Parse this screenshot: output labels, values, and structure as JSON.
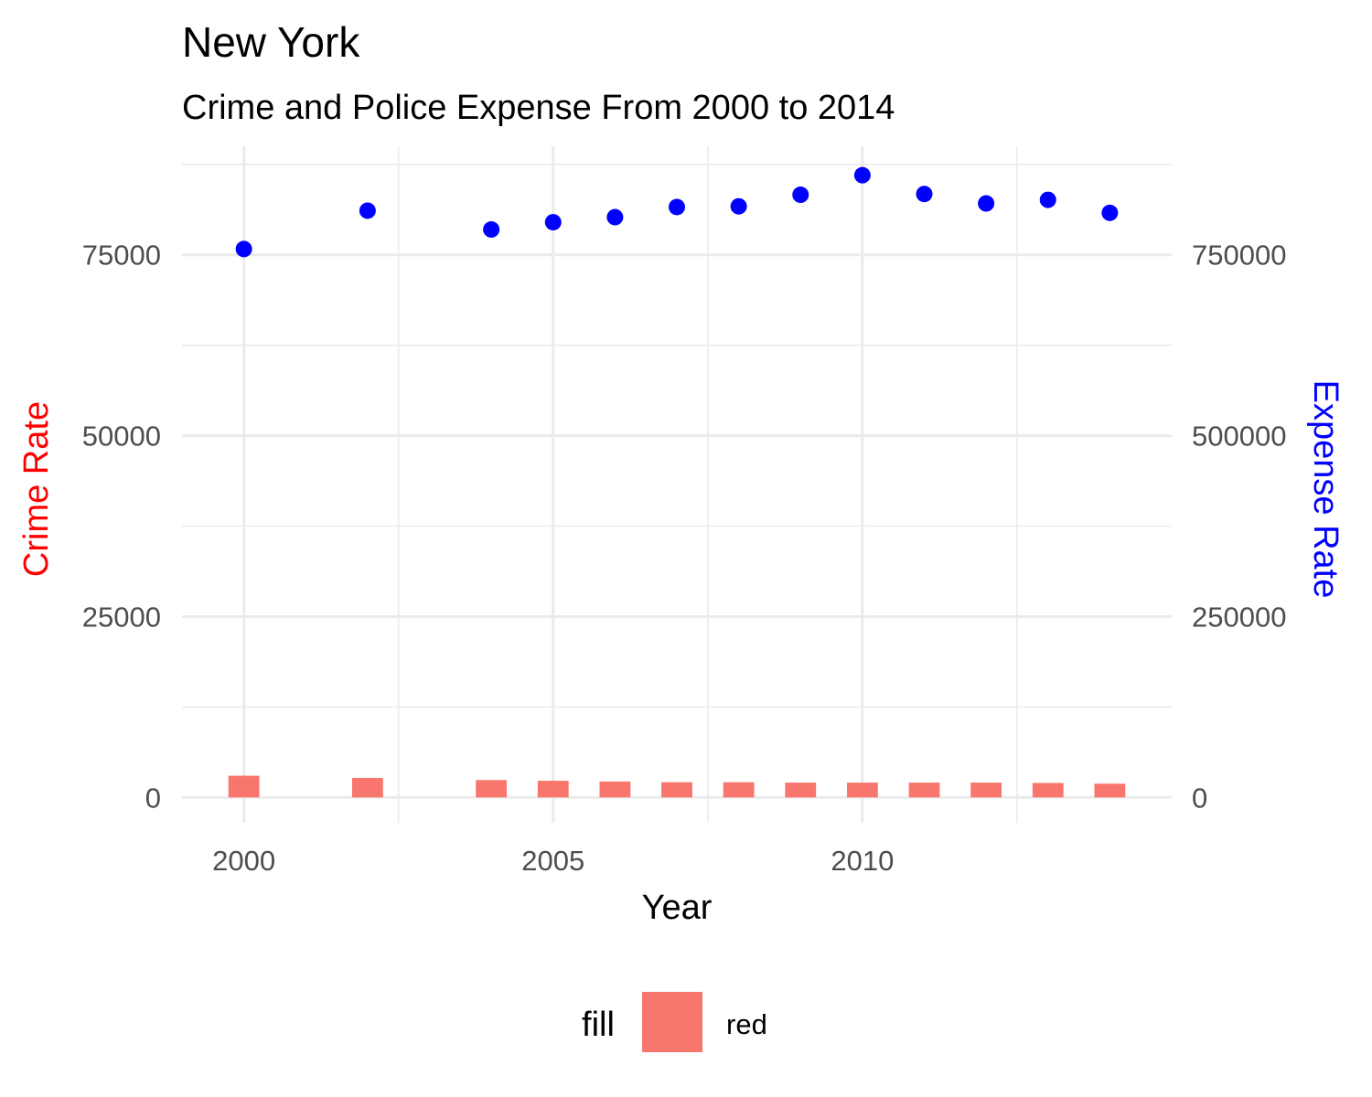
{
  "chart_data": {
    "type": "bar",
    "title": "New York",
    "subtitle": "Crime and Police Expense From 2000 to 2014",
    "xlabel": "Year",
    "ylabel": "Crime Rate",
    "y2label": "Expense Rate",
    "x": [
      2000,
      2002,
      2004,
      2005,
      2006,
      2007,
      2008,
      2009,
      2010,
      2011,
      2012,
      2013,
      2014
    ],
    "x_ticks": [
      "2000",
      "2005",
      "2010"
    ],
    "y_ticks": [
      "0",
      "25000",
      "50000",
      "75000"
    ],
    "y2_ticks": [
      "0",
      "250000",
      "500000",
      "750000"
    ],
    "xlim": [
      1999.0,
      2015.0
    ],
    "ylim": [
      -3500,
      90000
    ],
    "y2lim": [
      -35000,
      900000
    ],
    "grid": true,
    "series": [
      {
        "name": "red",
        "type": "bar",
        "axis": "left",
        "color": "#F8766D",
        "values": [
          3000,
          2700,
          2400,
          2300,
          2200,
          2100,
          2100,
          2050,
          2050,
          2050,
          2050,
          2000,
          1900
        ]
      },
      {
        "type": "scatter",
        "axis": "right",
        "color": "#0000FF",
        "values": [
          758000,
          811000,
          785000,
          795000,
          802000,
          816000,
          817000,
          833000,
          860000,
          834000,
          821000,
          826000,
          808000
        ]
      }
    ],
    "axis_title_colors": {
      "ylabel": "#FF0000",
      "y2label": "#0000FF"
    },
    "legend": {
      "title": "fill",
      "position": "bottom",
      "entries": [
        "red"
      ]
    }
  }
}
